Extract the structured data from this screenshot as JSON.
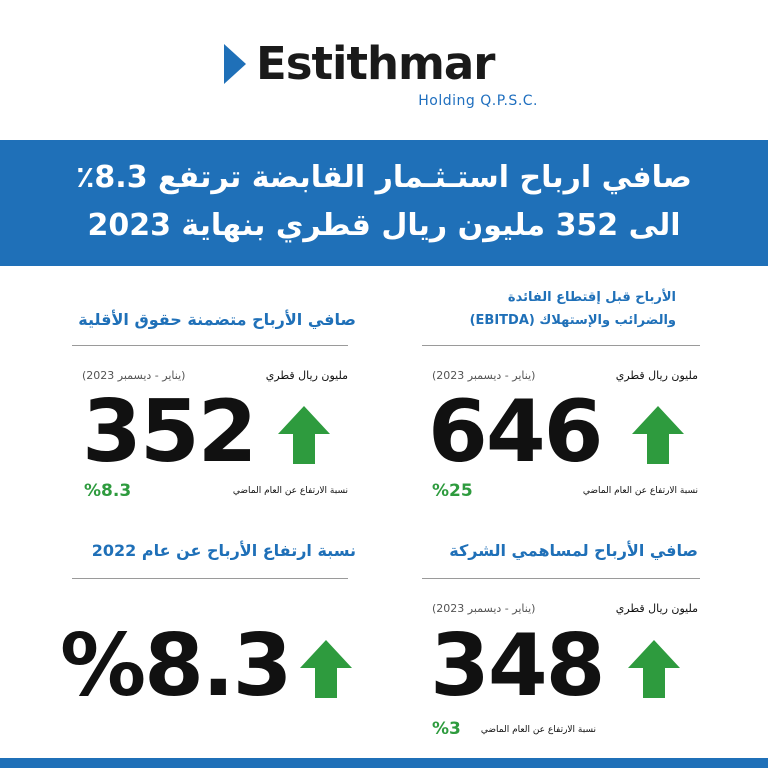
{
  "logo": {
    "name": "Estithmar",
    "subtitle": "Holding Q.P.S.C."
  },
  "banner": {
    "line1": "صافي ارباح استـثـمار القابضة ترتفع 8.3٪",
    "line2": "الى 352 مليون ريال قطري بنهاية 2023"
  },
  "panels": {
    "ebitda": {
      "title_line1": "الأرباح قبل إقتطاع الفائدة",
      "title_line2": "والضرائب والإستهلاك (EBITDA)",
      "unit": "مليون ريال قطري",
      "period": "(يناير - ديسمبر 2023)",
      "value": "646",
      "growth": "%25",
      "growth_caption": "نسبة الارتفاع عن العام الماضي"
    },
    "net_profit_minority": {
      "title": "صافي الأرباح متضمنة حقوق الأقلية",
      "unit": "مليون ريال قطري",
      "period": "(يناير - ديسمبر 2023)",
      "value": "352",
      "growth": "%8.3",
      "growth_caption": "نسبة الارتفاع عن العام الماضي"
    },
    "net_profit_shareholders": {
      "title": "صافي الأرباح لمساهمي الشركة",
      "unit": "مليون ريال قطري",
      "period": "(يناير - ديسمبر 2023)",
      "value": "348",
      "growth": "%3",
      "growth_caption": "نسبة الارتفاع عن العام الماضي"
    },
    "growth_rate": {
      "title": "نسبة ارتفاع الأرباح عن عام 2022",
      "value": "%8.3"
    }
  },
  "colors": {
    "brand_blue": "#1f70b8",
    "growth_green": "#2e9b3e"
  },
  "icons": {
    "up": "up-arrow-icon"
  }
}
